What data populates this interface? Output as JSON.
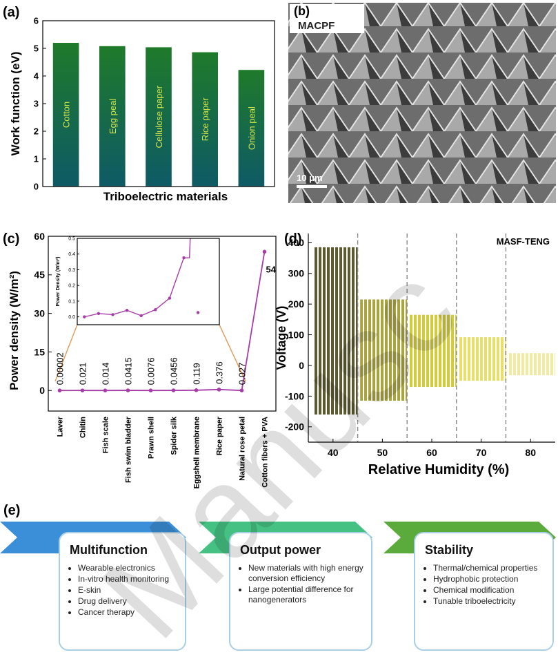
{
  "chart_data": [
    {
      "type": "bar",
      "panel_label": "(a)",
      "y_label": "Work function (eV)",
      "x_label": "Triboelectric materials",
      "categories": [
        "Cotton",
        "Egg peal",
        "Cellulose paper",
        "Rice paper",
        "Onion peal"
      ],
      "values": [
        5.2,
        5.08,
        5.04,
        4.86,
        4.22
      ],
      "color": "#1f7a2a",
      "color_bottom": "#0e5a66",
      "label_color": "#d4e64a",
      "ylim": [
        0,
        6
      ],
      "yticks": [
        0,
        1,
        2,
        3,
        4,
        5,
        6
      ]
    },
    {
      "type": "line",
      "panel_label": "(c)",
      "y_label": "Power density (W/m²)",
      "categories": [
        "Laver",
        "Chitin",
        "Fish scale",
        "Fish swim bladder",
        "Prawn shell",
        "Spider silk",
        "Eggshell membrane",
        "Rice paper",
        "Natural rose petal",
        "Cotton fibers + PVA"
      ],
      "values": [
        2e-05,
        0.021,
        0.014,
        0.0415,
        0.0076,
        0.0456,
        0.119,
        0.376,
        0.027,
        54
      ],
      "color": "#a63ca8",
      "ylim": [
        -8,
        60
      ],
      "yticks": [
        0,
        15,
        30,
        45,
        60
      ],
      "inset": {
        "y_label": "Power Density (W/m²)",
        "ylim": [
          -0.05,
          0.5
        ],
        "yticks": [
          {
            "value": 0,
            "label": "0.0"
          },
          0.1,
          0.2,
          0.3,
          0.4,
          0.5
        ]
      }
    },
    {
      "type": "band",
      "panel_label": "(d)",
      "annotation": "MASF-TENG",
      "y_label": "Voltage (V)",
      "x_label": "Relative Humidity (%)",
      "xlim": [
        35,
        85
      ],
      "xticks": [
        40,
        50,
        60,
        70,
        80
      ],
      "ylim": [
        -250,
        430
      ],
      "yticks": [
        -200,
        -100,
        0,
        100,
        200,
        300,
        400
      ],
      "dividers": [
        45,
        55,
        65,
        75
      ],
      "segments": [
        {
          "x": [
            36,
            45
          ],
          "max": 385,
          "min": -160,
          "color": "#5c5a2e"
        },
        {
          "x": [
            45.5,
            55
          ],
          "max": 215,
          "min": -115,
          "color": "#a9a53c"
        },
        {
          "x": [
            55.5,
            65
          ],
          "max": 165,
          "min": -70,
          "color": "#d2cc3a"
        },
        {
          "x": [
            65.5,
            75
          ],
          "max": 92,
          "min": -50,
          "color": "#e6e06a"
        },
        {
          "x": [
            75.5,
            85
          ],
          "max": 40,
          "min": -32,
          "color": "#efeba0"
        }
      ]
    }
  ],
  "image_panel": {
    "panel_label": "(b)",
    "sample_label": "MACPF",
    "scale_bar": "10 μm"
  },
  "diagram": {
    "panel_label": "(e)",
    "steps": [
      {
        "title": "Multifunction",
        "color": "#3a8fd8",
        "items": [
          "Wearable electronics",
          "In-vitro health monitoring",
          "E-skin",
          "Drug delivery",
          "Cancer therapy"
        ]
      },
      {
        "title": "Output power",
        "color": "#45c184",
        "items": [
          "New materials with high energy conversion efficiency",
          "Large potential difference for nanogenerators"
        ]
      },
      {
        "title": "Stability",
        "color": "#5aaa3c",
        "items": [
          "Thermal/chemical properties",
          "Hydrophobic protection",
          "Chemical modification",
          "Tunable triboelectricity"
        ]
      }
    ]
  },
  "watermark": "Manusc"
}
